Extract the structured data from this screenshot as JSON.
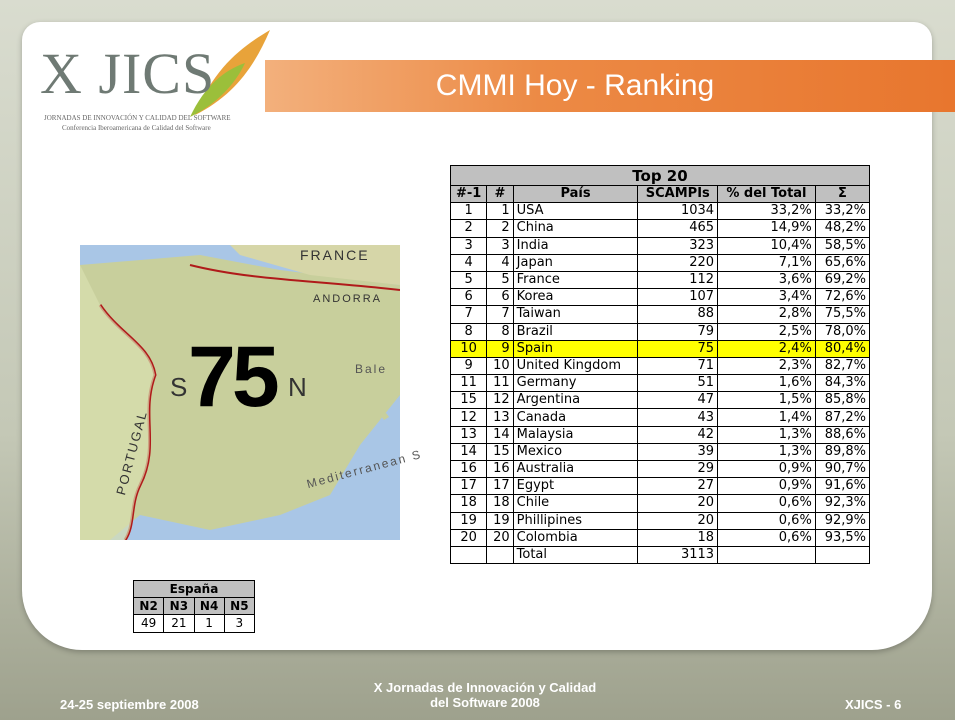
{
  "logo": {
    "text": "X JICS",
    "line1": "JORNADAS DE INNOVACIÓN Y CALIDAD DEL SOFTWARE",
    "line2": "Conferencia Iberoamericana de Calidad del Software"
  },
  "header": {
    "title": "CMMI Hoy - Ranking"
  },
  "map": {
    "figure": "75",
    "labels": [
      "FRANCE",
      "ANDORRA",
      "PORTUGAL",
      "S",
      "N",
      "Bale",
      "Mediterranean S"
    ]
  },
  "table": {
    "title": "Top 20",
    "columns": [
      "#-1",
      "#",
      "País",
      "SCAMPIs",
      "% del Total",
      "Σ"
    ],
    "highlight_row": 8,
    "rows": [
      [
        "1",
        "1",
        "USA",
        "1034",
        "33,2%",
        "33,2%"
      ],
      [
        "2",
        "2",
        "China",
        "465",
        "14,9%",
        "48,2%"
      ],
      [
        "3",
        "3",
        "India",
        "323",
        "10,4%",
        "58,5%"
      ],
      [
        "4",
        "4",
        "Japan",
        "220",
        "7,1%",
        "65,6%"
      ],
      [
        "5",
        "5",
        "France",
        "112",
        "3,6%",
        "69,2%"
      ],
      [
        "6",
        "6",
        "Korea",
        "107",
        "3,4%",
        "72,6%"
      ],
      [
        "7",
        "7",
        "Taiwan",
        "88",
        "2,8%",
        "75,5%"
      ],
      [
        "8",
        "8",
        "Brazil",
        "79",
        "2,5%",
        "78,0%"
      ],
      [
        "10",
        "9",
        "Spain",
        "75",
        "2,4%",
        "80,4%"
      ],
      [
        "9",
        "10",
        "United Kingdom",
        "71",
        "2,3%",
        "82,7%"
      ],
      [
        "11",
        "11",
        "Germany",
        "51",
        "1,6%",
        "84,3%"
      ],
      [
        "15",
        "12",
        "Argentina",
        "47",
        "1,5%",
        "85,8%"
      ],
      [
        "12",
        "13",
        "Canada",
        "43",
        "1,4%",
        "87,2%"
      ],
      [
        "13",
        "14",
        "Malaysia",
        "42",
        "1,3%",
        "88,6%"
      ],
      [
        "14",
        "15",
        "Mexico",
        "39",
        "1,3%",
        "89,8%"
      ],
      [
        "16",
        "16",
        "Australia",
        "29",
        "0,9%",
        "90,7%"
      ],
      [
        "17",
        "17",
        "Egypt",
        "27",
        "0,9%",
        "91,6%"
      ],
      [
        "18",
        "18",
        "Chile",
        "20",
        "0,6%",
        "92,3%"
      ],
      [
        "19",
        "19",
        "Phillipines",
        "20",
        "0,6%",
        "92,9%"
      ],
      [
        "20",
        "20",
        "Colombia",
        "18",
        "0,6%",
        "93,5%"
      ]
    ],
    "total": [
      "Total",
      "3113"
    ]
  },
  "spain_table": {
    "title": "España",
    "columns": [
      "N2",
      "N3",
      "N4",
      "N5"
    ],
    "values": [
      "49",
      "21",
      "1",
      "3"
    ]
  },
  "footer": {
    "left": "24-25 septiembre 2008",
    "center_line1": "X Jornadas de Innovación y Calidad",
    "center_line2": "del Software 2008",
    "right": "XJICS - 6"
  }
}
